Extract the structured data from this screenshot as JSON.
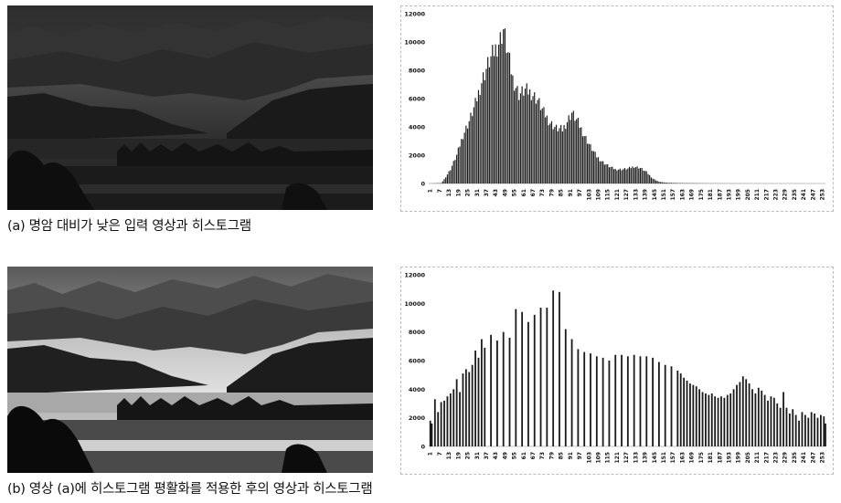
{
  "captions": {
    "a": "(a) 명암 대비가 낮은 입력 영상과 히스토그램",
    "b": "(b) 영상 (a)에 히스토그램 평활화를 적용한 후의 영상과 히스토그램"
  },
  "colors": {
    "bar": "#1a1a1a",
    "axis": "#888888",
    "text": "#111111"
  },
  "chart_data": [
    {
      "type": "bar",
      "ylim": [
        0,
        12000
      ],
      "yticks": [
        0,
        2000,
        4000,
        6000,
        8000,
        10000,
        12000
      ],
      "xtick_labels": [
        "1",
        "7",
        "13",
        "19",
        "25",
        "31",
        "37",
        "43",
        "49",
        "55",
        "61",
        "67",
        "73",
        "79",
        "85",
        "91",
        "97",
        "103",
        "109",
        "115",
        "121",
        "127",
        "133",
        "139",
        "145",
        "151",
        "157",
        "163",
        "169",
        "175",
        "181",
        "187",
        "193",
        "199",
        "205",
        "211",
        "217",
        "223",
        "229",
        "235",
        "241",
        "247",
        "253"
      ],
      "xlabel": "",
      "ylabel": "",
      "peaks": [
        [
          0,
          0
        ],
        [
          8,
          30
        ],
        [
          10,
          300
        ],
        [
          14,
          1000
        ],
        [
          18,
          2000
        ],
        [
          22,
          3400
        ],
        [
          26,
          4400
        ],
        [
          30,
          5600
        ],
        [
          34,
          7200
        ],
        [
          38,
          8400
        ],
        [
          42,
          9300
        ],
        [
          46,
          10200
        ],
        [
          48,
          10900
        ],
        [
          50,
          9700
        ],
        [
          54,
          7400
        ],
        [
          58,
          6300
        ],
        [
          62,
          6600
        ],
        [
          66,
          6400
        ],
        [
          70,
          5900
        ],
        [
          74,
          5000
        ],
        [
          78,
          4300
        ],
        [
          82,
          3900
        ],
        [
          86,
          3800
        ],
        [
          90,
          4600
        ],
        [
          92,
          5000
        ],
        [
          96,
          4300
        ],
        [
          100,
          3400
        ],
        [
          104,
          2600
        ],
        [
          108,
          1900
        ],
        [
          112,
          1500
        ],
        [
          116,
          1200
        ],
        [
          120,
          1000
        ],
        [
          124,
          1000
        ],
        [
          128,
          1050
        ],
        [
          132,
          1200
        ],
        [
          136,
          1100
        ],
        [
          140,
          800
        ],
        [
          144,
          350
        ],
        [
          148,
          120
        ],
        [
          152,
          60
        ],
        [
          160,
          30
        ],
        [
          180,
          10
        ],
        [
          200,
          5
        ],
        [
          255,
          0
        ]
      ]
    },
    {
      "type": "bar",
      "ylim": [
        0,
        12000
      ],
      "yticks": [
        0,
        2000,
        4000,
        6000,
        8000,
        10000,
        12000
      ],
      "xtick_labels": [
        "1",
        "7",
        "13",
        "19",
        "25",
        "31",
        "37",
        "43",
        "49",
        "55",
        "61",
        "67",
        "73",
        "79",
        "85",
        "91",
        "97",
        "103",
        "109",
        "115",
        "121",
        "127",
        "133",
        "139",
        "145",
        "151",
        "157",
        "163",
        "169",
        "175",
        "181",
        "187",
        "193",
        "199",
        "205",
        "211",
        "217",
        "223",
        "229",
        "235",
        "241",
        "247",
        "253"
      ],
      "xlabel": "",
      "ylabel": "",
      "x": [
        1,
        2,
        4,
        6,
        8,
        10,
        12,
        14,
        16,
        18,
        20,
        22,
        24,
        26,
        28,
        30,
        32,
        34,
        36,
        40,
        44,
        48,
        52,
        56,
        60,
        64,
        68,
        72,
        76,
        80,
        84,
        88,
        92,
        96,
        100,
        104,
        108,
        112,
        116,
        120,
        124,
        128,
        132,
        136,
        140,
        144,
        148,
        152,
        156,
        160,
        162,
        164,
        166,
        168,
        170,
        172,
        174,
        176,
        178,
        180,
        182,
        184,
        186,
        188,
        190,
        192,
        194,
        196,
        198,
        200,
        202,
        204,
        206,
        208,
        210,
        212,
        214,
        216,
        218,
        220,
        222,
        224,
        226,
        228,
        230,
        232,
        234,
        236,
        238,
        240,
        242,
        244,
        246,
        248,
        250,
        252,
        254,
        255
      ],
      "values": [
        1800,
        1600,
        3300,
        2400,
        3100,
        3200,
        3500,
        3700,
        4000,
        4700,
        3800,
        5100,
        5400,
        5200,
        5700,
        6700,
        6200,
        7500,
        6900,
        7800,
        7400,
        8000,
        7600,
        9600,
        9400,
        8700,
        9200,
        9700,
        9700,
        10900,
        10800,
        8200,
        7500,
        6800,
        6600,
        6500,
        6300,
        6200,
        6000,
        6400,
        6400,
        6300,
        6400,
        6300,
        6300,
        6200,
        5900,
        5700,
        5600,
        5300,
        5100,
        4800,
        4600,
        4400,
        4300,
        4200,
        4000,
        3800,
        3700,
        3600,
        3700,
        3500,
        3400,
        3500,
        3400,
        3600,
        3700,
        4000,
        4300,
        4500,
        4900,
        4700,
        4400,
        4000,
        3700,
        4100,
        3900,
        3600,
        3200,
        3500,
        3400,
        3000,
        2700,
        3800,
        2700,
        2300,
        2600,
        2200,
        1800,
        2400,
        2200,
        2000,
        2400,
        2300,
        2000,
        2200,
        2100,
        1600
      ]
    }
  ]
}
